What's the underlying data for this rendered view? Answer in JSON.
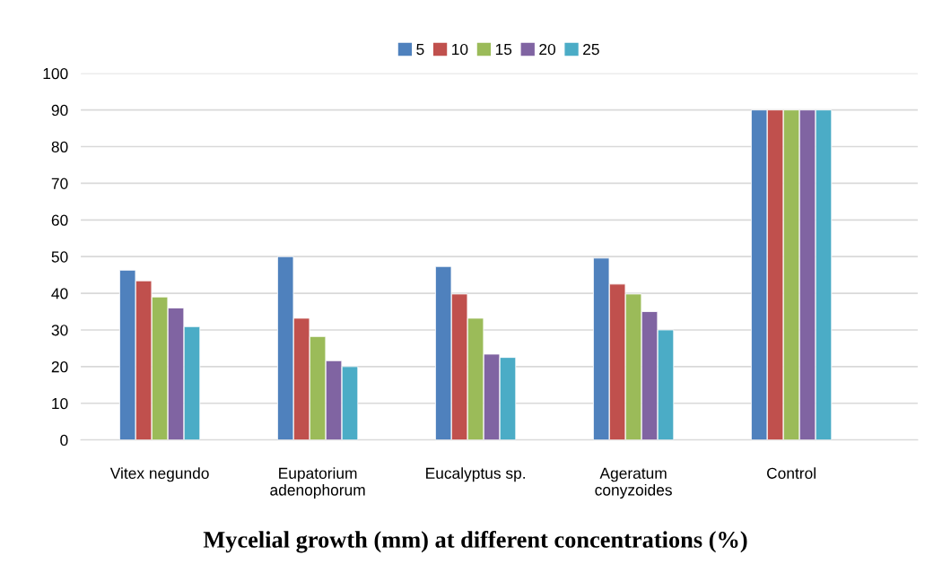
{
  "chart_data": {
    "type": "bar",
    "title": "Mycelial growth (mm) at different concentrations (%)",
    "categories": [
      "Vitex negundo",
      "Eupatorium\nadenophorum",
      "Eucalyptus sp.",
      "Ageratum\nconyzoides",
      "Control"
    ],
    "series": [
      {
        "name": "5",
        "color": "#4f81bd",
        "values": [
          46.3,
          50,
          47.3,
          49.6,
          90
        ]
      },
      {
        "name": "10",
        "color": "#c0504d",
        "values": [
          43.4,
          33.2,
          39.8,
          42.5,
          90
        ]
      },
      {
        "name": "15",
        "color": "#9bbb59",
        "values": [
          39,
          28.2,
          33.2,
          39.8,
          90
        ]
      },
      {
        "name": "20",
        "color": "#8064a2",
        "values": [
          36,
          21.6,
          23.4,
          35,
          90
        ]
      },
      {
        "name": "25",
        "color": "#4bacc6",
        "values": [
          30.9,
          20,
          22.5,
          30,
          90
        ]
      }
    ],
    "ylim": [
      0,
      100
    ],
    "yticks": [
      0,
      10,
      20,
      30,
      40,
      50,
      60,
      70,
      80,
      90,
      100
    ],
    "grid": "y",
    "legend": "top"
  }
}
